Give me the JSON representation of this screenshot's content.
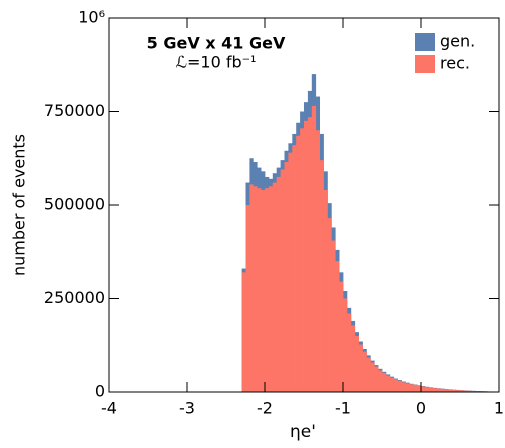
{
  "chart_data": {
    "type": "histogram",
    "annotations": [
      "5 GeV x 41 GeV",
      "ℒ=10 fb⁻¹"
    ],
    "xlabel": "ηe'",
    "ylabel": "number of events",
    "xlim": [
      -4,
      1
    ],
    "ylim": [
      0,
      1000000
    ],
    "xticks": [
      -4,
      -3,
      -2,
      -1,
      0,
      1
    ],
    "yticks": [
      0,
      250000,
      500000,
      750000,
      {
        "value": 1000000,
        "label": "10⁶"
      }
    ],
    "legend": "upper right",
    "bins": [
      -2.3,
      -2.25,
      -2.2,
      -2.15,
      -2.1,
      -2.05,
      -2.0,
      -1.95,
      -1.9,
      -1.85,
      -1.8,
      -1.75,
      -1.7,
      -1.65,
      -1.6,
      -1.55,
      -1.5,
      -1.45,
      -1.4,
      -1.35,
      -1.3,
      -1.25,
      -1.2,
      -1.15,
      -1.1,
      -1.05,
      -1.0,
      -0.95,
      -0.9,
      -0.85,
      -0.8,
      -0.75,
      -0.7,
      -0.65,
      -0.6,
      -0.55,
      -0.5,
      -0.45,
      -0.4,
      -0.35,
      -0.3,
      -0.25,
      -0.2,
      -0.15,
      -0.1,
      -0.05,
      0.0,
      0.05,
      0.1,
      0.15,
      0.2,
      0.25,
      0.3,
      0.35,
      0.4,
      0.45,
      0.5,
      0.55,
      0.6,
      0.65,
      0.7,
      0.75,
      0.8,
      0.85,
      0.9,
      0.95,
      1.0
    ],
    "series": [
      {
        "name": "gen.",
        "color": "#5b80b2",
        "values": [
          330000,
          560000,
          625000,
          615000,
          600000,
          590000,
          575000,
          570000,
          585000,
          600000,
          620000,
          645000,
          665000,
          690000,
          720000,
          750000,
          775000,
          805000,
          850000,
          790000,
          690000,
          590000,
          505000,
          440000,
          380000,
          320000,
          270000,
          225000,
          190000,
          160000,
          135000,
          115000,
          98000,
          84000,
          72000,
          62000,
          54000,
          47000,
          41000,
          36000,
          32000,
          28000,
          25000,
          22000,
          20000,
          18000,
          16000,
          14000,
          12500,
          11000,
          10000,
          9000,
          8000,
          7000,
          6200,
          5500,
          4800,
          4200,
          3600,
          3100,
          2600,
          2200,
          1800,
          1400,
          1000,
          600
        ]
      },
      {
        "name": "rec.",
        "color": "#fd7566",
        "values": [
          320000,
          500000,
          555000,
          550000,
          545000,
          540000,
          545000,
          550000,
          560000,
          575000,
          595000,
          615000,
          640000,
          660000,
          685000,
          705000,
          725000,
          735000,
          765000,
          700000,
          620000,
          540000,
          465000,
          405000,
          350000,
          295000,
          250000,
          210000,
          178000,
          150000,
          127000,
          108000,
          92000,
          79000,
          68000,
          58000,
          51000,
          44000,
          38000,
          34000,
          30000,
          26000,
          23000,
          21000,
          19000,
          17000,
          15000,
          13000,
          11500,
          10200,
          9200,
          8200,
          7300,
          6400,
          5600,
          5000,
          4400,
          3800,
          3300,
          2800,
          2400,
          2000,
          1600,
          1200,
          900,
          500
        ]
      }
    ]
  }
}
